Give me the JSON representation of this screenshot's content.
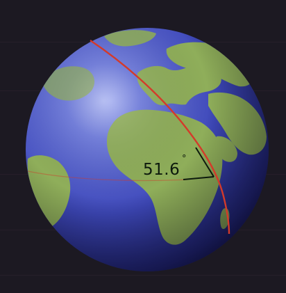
{
  "diagram": {
    "angle_label": "51.6",
    "degree_symbol": "°"
  },
  "colors": {
    "background": "#1c1922",
    "ocean_light": "#6f7ce0",
    "ocean_mid": "#3d47b8",
    "ocean_dark": "#1c1a5a",
    "land": "#8fae5a",
    "orbit_line": "#d43a2a",
    "equator_line": "#d03a2a",
    "label": "#0d1a0d"
  },
  "icons": {
    "globe": "earth-globe-icon"
  }
}
